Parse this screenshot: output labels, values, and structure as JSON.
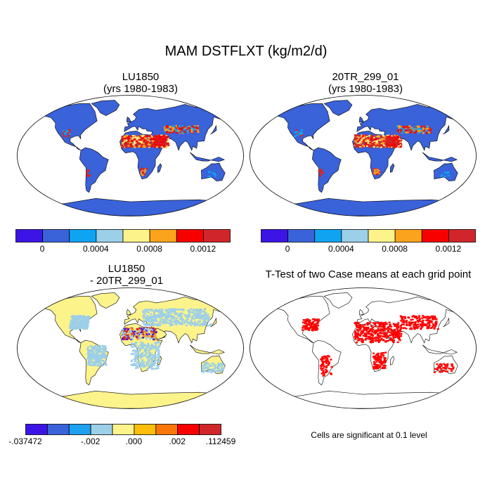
{
  "figure_title": "MAM DSTFLXT (kg/m2/d)",
  "panels": {
    "top_left": {
      "title_line1": "LU1850",
      "title_line2": "(yrs 1980-1983)"
    },
    "top_right": {
      "title_line1": "20TR_299_01",
      "title_line2": "(yrs 1980-1983)"
    },
    "bottom_left": {
      "title_line1": "LU1850",
      "title_line2": "- 20TR_299_01"
    },
    "bottom_right": {
      "title_line1": "T-Test of two Case means at each grid point",
      "note": "Cells are significant at 0.1 level"
    }
  },
  "colorbars": {
    "top_left": {
      "colors": [
        "#3c14e6",
        "#3a62d9",
        "#0ea4f2",
        "#9ccfe8",
        "#fdf38b",
        "#fba31c",
        "#f80000",
        "#d0262b"
      ],
      "labels": [
        "0",
        "0.0004",
        "0.0008",
        "0.0012"
      ]
    },
    "top_right": {
      "colors": [
        "#3c14e6",
        "#3a62d9",
        "#0ea4f2",
        "#9ccfe8",
        "#fdf38b",
        "#fba31c",
        "#f80000",
        "#d0262b"
      ],
      "labels": [
        "0",
        "0.0004",
        "0.0008",
        "0.0012"
      ]
    },
    "bottom_left": {
      "colors": [
        "#3c14e6",
        "#3a62d9",
        "#1ea0f0",
        "#9ccfe8",
        "#fdf38b",
        "#fbbd0a",
        "#fb7608",
        "#f80000",
        "#d0262b"
      ],
      "labels": [
        "-.037472",
        "-.002",
        ".000",
        ".002",
        ".112459"
      ]
    }
  },
  "map_colors": {
    "ocean": "#ffffff",
    "land_top": "#3a62d9",
    "land_diff": "#fdf38b",
    "diff_light": "#9ccfe8",
    "hot_red": "#d0262b",
    "hot_bright": "#f80000",
    "orange": "#fba31c",
    "yellow": "#fdf38b",
    "cyan": "#0ea4f2",
    "purple": "#3c14e6",
    "sig_red": "#ff0000"
  }
}
